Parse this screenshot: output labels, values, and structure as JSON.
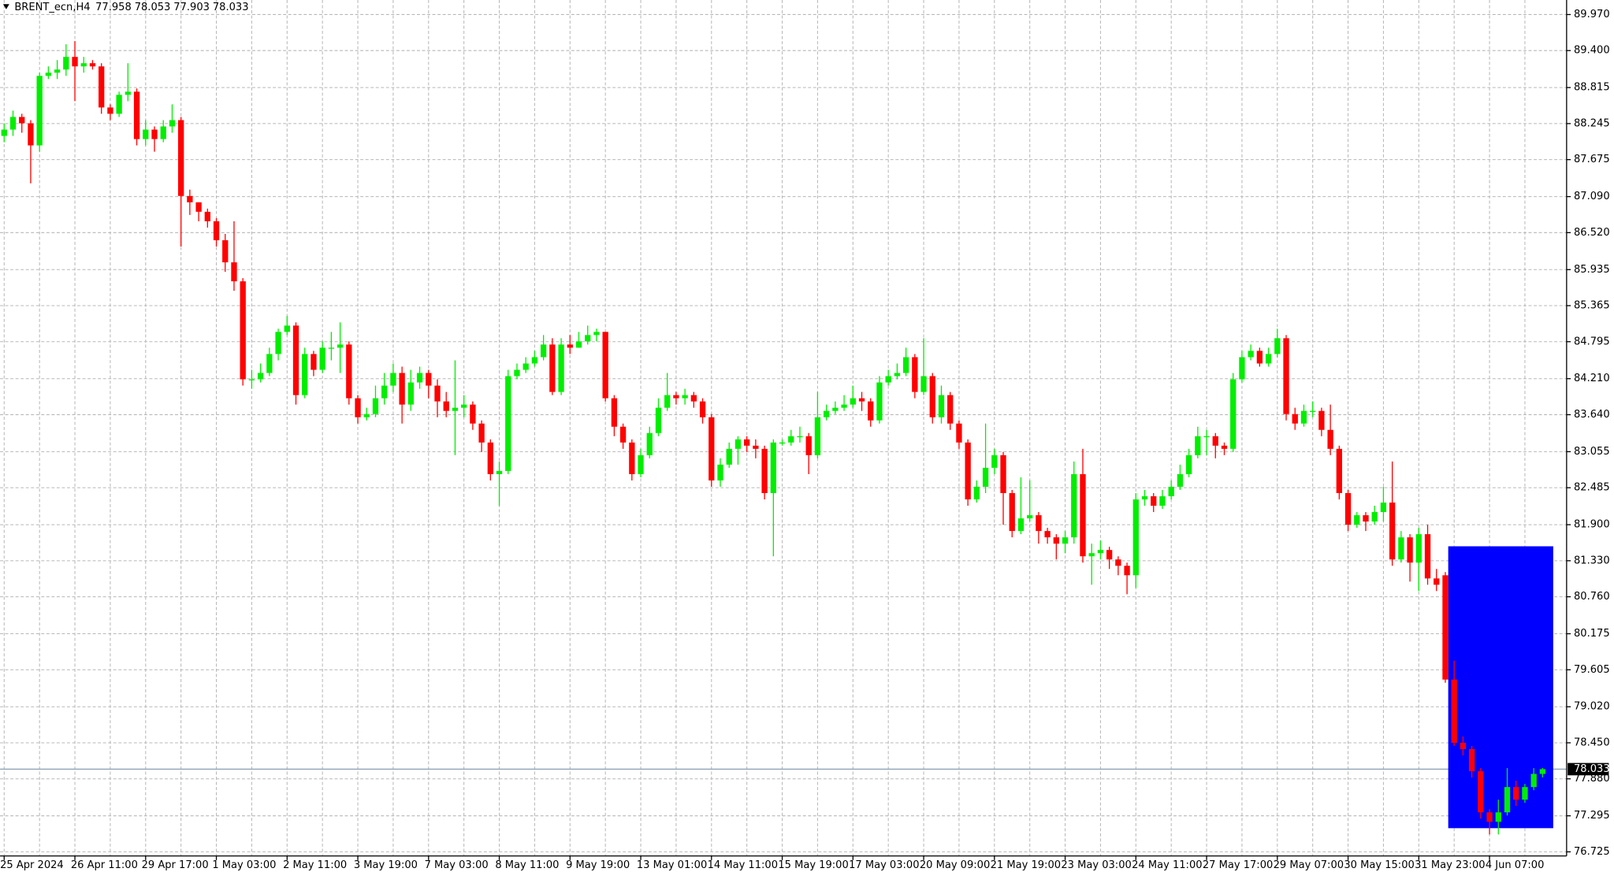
{
  "chart_data": {
    "type": "candlestick",
    "symbol": "BRENT_ecn,H4",
    "up_color": "#00ee00",
    "down_color": "#ff0000",
    "grid": true,
    "ylim": [
      76.66,
      90.2
    ],
    "yticks": [
      {
        "value": 89.97,
        "label": "89.970"
      },
      {
        "value": 89.4,
        "label": "89.400"
      },
      88.815,
      88.245,
      87.675,
      {
        "value": 87.09,
        "label": "87.090"
      },
      {
        "value": 86.52,
        "label": "86.520"
      },
      85.935,
      85.365,
      84.795,
      {
        "value": 84.21,
        "label": "84.210"
      },
      {
        "value": 83.64,
        "label": "83.640"
      },
      83.055,
      82.485,
      {
        "value": 81.9,
        "label": "81.900"
      },
      {
        "value": 81.33,
        "label": "81.330"
      },
      {
        "value": 80.76,
        "label": "80.760"
      },
      80.175,
      79.605,
      {
        "value": 79.02,
        "label": "79.020"
      },
      {
        "value": 78.45,
        "label": "78.450"
      },
      {
        "value": 77.88,
        "label": "77.880"
      },
      77.295,
      76.725
    ],
    "last_price": 78.033,
    "categories": [
      "25 Apr 2024",
      null,
      null,
      null,
      null,
      null,
      null,
      null,
      "26 Apr 11:00",
      null,
      null,
      null,
      null,
      null,
      null,
      null,
      "29 Apr 17:00",
      null,
      null,
      null,
      null,
      null,
      null,
      null,
      "1 May 03:00",
      null,
      null,
      null,
      null,
      null,
      null,
      null,
      "2 May 11:00",
      null,
      null,
      null,
      null,
      null,
      null,
      null,
      "3 May 19:00",
      null,
      null,
      null,
      null,
      null,
      null,
      null,
      "7 May 03:00",
      null,
      null,
      null,
      null,
      null,
      null,
      null,
      "8 May 11:00",
      null,
      null,
      null,
      null,
      null,
      null,
      null,
      "9 May 19:00",
      null,
      null,
      null,
      null,
      null,
      null,
      null,
      "13 May 01:00",
      null,
      null,
      null,
      null,
      null,
      null,
      null,
      "14 May 11:00",
      null,
      null,
      null,
      null,
      null,
      null,
      null,
      "15 May 19:00",
      null,
      null,
      null,
      null,
      null,
      null,
      null,
      "17 May 03:00",
      null,
      null,
      null,
      null,
      null,
      null,
      null,
      "20 May 09:00",
      null,
      null,
      null,
      null,
      null,
      null,
      null,
      "21 May 19:00",
      null,
      null,
      null,
      null,
      null,
      null,
      null,
      "23 May 03:00",
      null,
      null,
      null,
      null,
      null,
      null,
      null,
      "24 May 11:00",
      null,
      null,
      null,
      null,
      null,
      null,
      null,
      "27 May 17:00",
      null,
      null,
      null,
      null,
      null,
      null,
      null,
      "29 May 07:00",
      null,
      null,
      null,
      null,
      null,
      null,
      null,
      "30 May 15:00",
      null,
      null,
      null,
      null,
      null,
      null,
      null,
      "31 May 23:00",
      null,
      null,
      null,
      null,
      null,
      null,
      null,
      "4 Jun 07:00",
      null,
      null,
      null,
      null,
      null,
      null
    ],
    "ohlc": [
      [
        88.05,
        88.25,
        87.95,
        88.15
      ],
      [
        88.15,
        88.45,
        88.05,
        88.35
      ],
      [
        88.35,
        88.4,
        88.1,
        88.25
      ],
      [
        88.25,
        88.3,
        87.3,
        87.9
      ],
      [
        87.9,
        89.05,
        87.8,
        89.0
      ],
      [
        89.0,
        89.15,
        88.95,
        89.05
      ],
      [
        89.05,
        89.25,
        88.95,
        89.1
      ],
      [
        89.1,
        89.5,
        89.0,
        89.3
      ],
      [
        89.3,
        89.55,
        88.6,
        89.15
      ],
      [
        89.15,
        89.3,
        89.05,
        89.2
      ],
      [
        89.2,
        89.25,
        89.1,
        89.15
      ],
      [
        89.15,
        89.2,
        88.4,
        88.5
      ],
      [
        88.5,
        88.55,
        88.3,
        88.4
      ],
      [
        88.4,
        88.75,
        88.35,
        88.7
      ],
      [
        88.7,
        89.2,
        88.6,
        88.75
      ],
      [
        88.75,
        88.8,
        87.9,
        88.0
      ],
      [
        88.0,
        88.3,
        87.9,
        88.15
      ],
      [
        88.15,
        88.2,
        87.8,
        88.0
      ],
      [
        88.0,
        88.3,
        87.95,
        88.2
      ],
      [
        88.2,
        88.55,
        88.1,
        88.3
      ],
      [
        88.3,
        88.35,
        86.3,
        87.1
      ],
      [
        87.1,
        87.2,
        86.8,
        87.0
      ],
      [
        87.0,
        87.0,
        86.7,
        86.85
      ],
      [
        86.85,
        86.9,
        86.6,
        86.7
      ],
      [
        86.7,
        86.75,
        86.3,
        86.4
      ],
      [
        86.4,
        86.5,
        85.9,
        86.05
      ],
      [
        86.05,
        86.7,
        85.6,
        85.75
      ],
      [
        85.75,
        85.8,
        84.1,
        84.2
      ],
      [
        84.2,
        84.35,
        84.05,
        84.2
      ],
      [
        84.2,
        84.45,
        84.15,
        84.3
      ],
      [
        84.3,
        84.7,
        84.25,
        84.6
      ],
      [
        84.6,
        85.0,
        84.5,
        84.95
      ],
      [
        84.95,
        85.2,
        84.9,
        85.05
      ],
      [
        85.05,
        85.1,
        83.8,
        83.95
      ],
      [
        83.95,
        84.7,
        83.9,
        84.6
      ],
      [
        84.6,
        84.65,
        84.25,
        84.35
      ],
      [
        84.35,
        84.8,
        84.3,
        84.7
      ],
      [
        84.7,
        84.95,
        84.5,
        84.7
      ],
      [
        84.7,
        85.1,
        84.3,
        84.75
      ],
      [
        84.75,
        84.8,
        83.8,
        83.9
      ],
      [
        83.9,
        83.95,
        83.5,
        83.6
      ],
      [
        83.6,
        83.75,
        83.55,
        83.65
      ],
      [
        83.65,
        84.1,
        83.6,
        83.9
      ],
      [
        83.9,
        84.3,
        83.8,
        84.1
      ],
      [
        84.1,
        84.45,
        84.0,
        84.3
      ],
      [
        84.3,
        84.4,
        83.5,
        83.8
      ],
      [
        83.8,
        84.35,
        83.7,
        84.15
      ],
      [
        84.15,
        84.4,
        84.05,
        84.3
      ],
      [
        84.3,
        84.35,
        83.9,
        84.1
      ],
      [
        84.1,
        84.2,
        83.6,
        83.85
      ],
      [
        83.85,
        84.0,
        83.6,
        83.7
      ],
      [
        83.7,
        84.5,
        83.0,
        83.75
      ],
      [
        83.75,
        83.95,
        83.6,
        83.8
      ],
      [
        83.8,
        83.85,
        83.4,
        83.5
      ],
      [
        83.5,
        83.55,
        83.05,
        83.2
      ],
      [
        83.2,
        83.25,
        82.6,
        82.7
      ],
      [
        82.7,
        82.9,
        82.2,
        82.75
      ],
      [
        82.75,
        84.35,
        82.7,
        84.25
      ],
      [
        84.25,
        84.45,
        84.2,
        84.35
      ],
      [
        84.35,
        84.55,
        84.3,
        84.45
      ],
      [
        84.45,
        84.65,
        84.4,
        84.55
      ],
      [
        84.55,
        84.9,
        84.5,
        84.75
      ],
      [
        84.75,
        84.85,
        83.95,
        84.0
      ],
      [
        84.0,
        84.85,
        83.95,
        84.75
      ],
      [
        84.75,
        84.9,
        84.6,
        84.7
      ],
      [
        84.7,
        84.95,
        84.7,
        84.8
      ],
      [
        84.8,
        85.05,
        84.75,
        84.9
      ],
      [
        84.9,
        85.0,
        84.8,
        84.95
      ],
      [
        84.95,
        84.95,
        83.85,
        83.9
      ],
      [
        83.9,
        83.95,
        83.3,
        83.45
      ],
      [
        83.45,
        83.5,
        83.1,
        83.2
      ],
      [
        83.2,
        83.25,
        82.6,
        82.7
      ],
      [
        82.7,
        83.1,
        82.65,
        83.0
      ],
      [
        83.0,
        83.45,
        82.95,
        83.35
      ],
      [
        83.35,
        83.9,
        83.3,
        83.75
      ],
      [
        83.75,
        84.3,
        83.7,
        83.95
      ],
      [
        83.95,
        84.0,
        83.8,
        83.9
      ],
      [
        83.9,
        84.05,
        83.8,
        83.95
      ],
      [
        83.95,
        84.0,
        83.75,
        83.85
      ],
      [
        83.85,
        83.9,
        83.5,
        83.6
      ],
      [
        83.6,
        83.65,
        82.5,
        82.6
      ],
      [
        82.6,
        82.95,
        82.5,
        82.85
      ],
      [
        82.85,
        83.2,
        82.8,
        83.1
      ],
      [
        83.1,
        83.3,
        82.85,
        83.25
      ],
      [
        83.25,
        83.3,
        83.05,
        83.15
      ],
      [
        83.15,
        83.25,
        82.95,
        83.1
      ],
      [
        83.1,
        83.15,
        82.3,
        82.4
      ],
      [
        82.4,
        83.25,
        81.4,
        83.2
      ],
      [
        83.2,
        83.25,
        83.15,
        83.2
      ],
      [
        83.2,
        83.4,
        83.15,
        83.3
      ],
      [
        83.3,
        83.45,
        83.2,
        83.3
      ],
      [
        83.3,
        83.35,
        82.7,
        83.0
      ],
      [
        83.0,
        84.0,
        82.95,
        83.6
      ],
      [
        83.6,
        83.8,
        83.55,
        83.7
      ],
      [
        83.7,
        83.85,
        83.65,
        83.75
      ],
      [
        83.75,
        83.95,
        83.7,
        83.8
      ],
      [
        83.8,
        84.1,
        83.75,
        83.9
      ],
      [
        83.9,
        84.0,
        83.7,
        83.85
      ],
      [
        83.85,
        83.9,
        83.45,
        83.55
      ],
      [
        83.55,
        84.25,
        83.5,
        84.15
      ],
      [
        84.15,
        84.35,
        84.1,
        84.25
      ],
      [
        84.25,
        84.45,
        84.2,
        84.3
      ],
      [
        84.3,
        84.7,
        84.25,
        84.55
      ],
      [
        84.55,
        84.6,
        83.9,
        84.0
      ],
      [
        84.0,
        84.85,
        83.95,
        84.25
      ],
      [
        84.25,
        84.3,
        83.5,
        83.6
      ],
      [
        83.6,
        84.1,
        83.5,
        83.95
      ],
      [
        83.95,
        84.0,
        83.4,
        83.5
      ],
      [
        83.5,
        83.55,
        83.1,
        83.2
      ],
      [
        83.2,
        83.25,
        82.2,
        82.3
      ],
      [
        82.3,
        82.6,
        82.25,
        82.5
      ],
      [
        82.5,
        83.5,
        82.4,
        82.8
      ],
      [
        82.8,
        83.1,
        82.7,
        83.0
      ],
      [
        83.0,
        83.05,
        81.9,
        82.4
      ],
      [
        82.4,
        82.45,
        81.7,
        81.8
      ],
      [
        81.8,
        82.65,
        81.75,
        82.0
      ],
      [
        82.0,
        82.6,
        81.95,
        82.05
      ],
      [
        82.05,
        82.1,
        81.6,
        81.8
      ],
      [
        81.8,
        81.85,
        81.6,
        81.7
      ],
      [
        81.7,
        81.75,
        81.35,
        81.6
      ],
      [
        81.6,
        81.8,
        81.45,
        81.7
      ],
      [
        81.7,
        82.9,
        81.6,
        82.7
      ],
      [
        82.7,
        83.1,
        81.3,
        81.4
      ],
      [
        81.4,
        81.6,
        80.95,
        81.45
      ],
      [
        81.45,
        81.65,
        81.35,
        81.5
      ],
      [
        81.5,
        81.55,
        81.2,
        81.35
      ],
      [
        81.35,
        81.4,
        81.1,
        81.25
      ],
      [
        81.25,
        81.3,
        80.8,
        81.1
      ],
      [
        81.1,
        82.4,
        80.9,
        82.3
      ],
      [
        82.3,
        82.45,
        82.2,
        82.35
      ],
      [
        82.35,
        82.4,
        82.1,
        82.2
      ],
      [
        82.2,
        82.45,
        82.15,
        82.35
      ],
      [
        82.35,
        82.6,
        82.3,
        82.5
      ],
      [
        82.5,
        82.85,
        82.45,
        82.7
      ],
      [
        82.7,
        83.1,
        82.65,
        83.0
      ],
      [
        83.0,
        83.45,
        82.95,
        83.3
      ],
      [
        83.3,
        83.4,
        83.0,
        83.3
      ],
      [
        83.3,
        83.35,
        82.95,
        83.15
      ],
      [
        83.15,
        83.2,
        83.0,
        83.1
      ],
      [
        83.1,
        84.3,
        83.05,
        84.2
      ],
      [
        84.2,
        84.65,
        84.15,
        84.55
      ],
      [
        84.55,
        84.75,
        84.5,
        84.65
      ],
      [
        84.65,
        84.7,
        84.4,
        84.45
      ],
      [
        84.45,
        84.7,
        84.4,
        84.6
      ],
      [
        84.6,
        85.0,
        84.55,
        84.85
      ],
      [
        84.85,
        84.9,
        83.55,
        83.65
      ],
      [
        83.65,
        83.75,
        83.4,
        83.5
      ],
      [
        83.5,
        83.8,
        83.45,
        83.7
      ],
      [
        83.7,
        83.85,
        83.6,
        83.7
      ],
      [
        83.7,
        83.75,
        83.3,
        83.4
      ],
      [
        83.4,
        83.8,
        83.0,
        83.1
      ],
      [
        83.1,
        83.15,
        82.3,
        82.4
      ],
      [
        82.4,
        82.45,
        81.8,
        81.9
      ],
      [
        81.9,
        82.1,
        81.85,
        82.05
      ],
      [
        82.05,
        82.1,
        81.8,
        81.95
      ],
      [
        81.95,
        82.2,
        81.9,
        82.1
      ],
      [
        82.1,
        82.5,
        81.95,
        82.25
      ],
      [
        82.25,
        82.9,
        81.25,
        81.35
      ],
      [
        81.35,
        81.8,
        81.3,
        81.7
      ],
      [
        81.7,
        81.75,
        81.0,
        81.3
      ],
      [
        81.3,
        81.85,
        80.85,
        81.75
      ],
      [
        81.75,
        81.9,
        80.95,
        81.05
      ],
      [
        81.05,
        81.2,
        80.85,
        80.95
      ],
      [
        81.1,
        81.15,
        79.4,
        79.45
      ],
      [
        79.45,
        79.75,
        78.4,
        78.45
      ],
      [
        78.45,
        78.55,
        78.25,
        78.35
      ],
      [
        78.35,
        78.4,
        77.9,
        78.0
      ],
      [
        78.0,
        78.05,
        77.25,
        77.35
      ],
      [
        77.35,
        77.4,
        77.0,
        77.2
      ],
      [
        77.2,
        77.55,
        77.0,
        77.35
      ],
      [
        77.35,
        78.05,
        77.3,
        77.75
      ],
      [
        77.75,
        77.85,
        77.45,
        77.55
      ],
      [
        77.55,
        77.8,
        77.5,
        77.75
      ],
      [
        77.75,
        78.05,
        77.7,
        77.958
      ],
      [
        77.958,
        78.053,
        77.903,
        78.033
      ]
    ]
  }
}
